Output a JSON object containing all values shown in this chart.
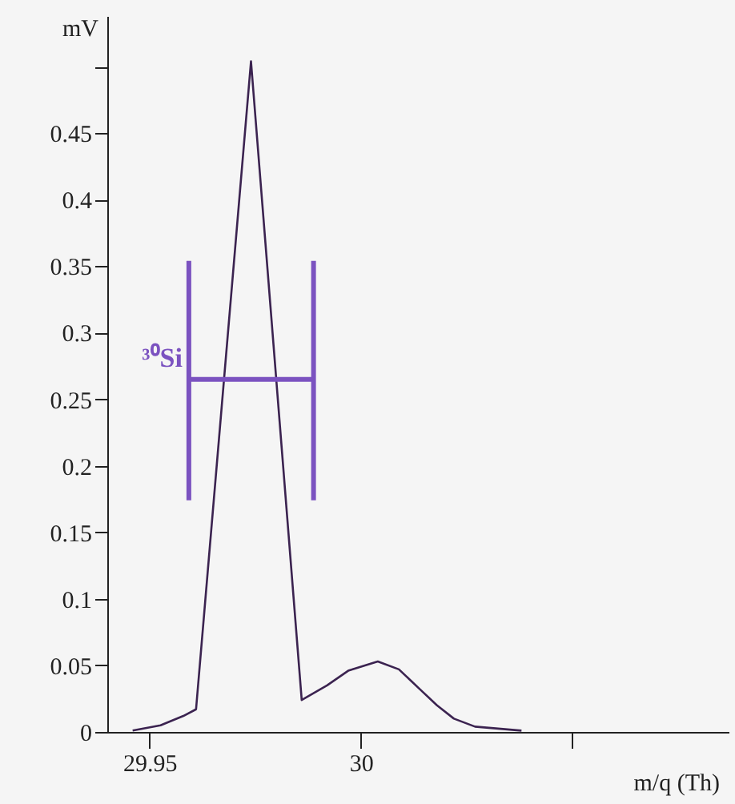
{
  "chart_data": {
    "type": "line",
    "xlabel": "m/q (Th)",
    "ylabel": "mV",
    "x": [
      29.946,
      29.9526,
      29.958,
      29.961,
      29.974,
      29.986,
      29.992,
      29.997,
      30.004,
      30.009,
      30.014,
      30.018,
      30.022,
      30.027,
      30.038
    ],
    "series": [
      {
        "color": "#3b2350",
        "values": [
          0.001,
          0.005,
          0.012,
          0.017,
          0.504,
          0.024,
          0.035,
          0.046,
          0.053,
          0.047,
          0.032,
          0.02,
          0.01,
          0.004,
          0.001
        ]
      },
      {
        "type": "line",
        "name": "³⁰Si",
        "color": "#7b52c0",
        "x": [
          29.9593,
          29.9888
        ],
        "values": [
          0.265,
          0.265
        ],
        "errors": [
          [
            0.174,
            0.354
          ],
          [
            0.174,
            0.354
          ]
        ]
      }
    ],
    "xlim": [
      29.94,
      30.087
    ],
    "ylim": [
      0,
      0.538
    ],
    "xticks": [
      29.95,
      30,
      {
        "value": 30.05,
        "label": null
      }
    ],
    "yticks": [
      0,
      0.05,
      0.1,
      0.15,
      0.2,
      0.25,
      0.3,
      0.35,
      0.4,
      0.45,
      {
        "value": 0.5,
        "label": null
      }
    ],
    "grid": false,
    "marker": "none",
    "line_style": "solid"
  }
}
